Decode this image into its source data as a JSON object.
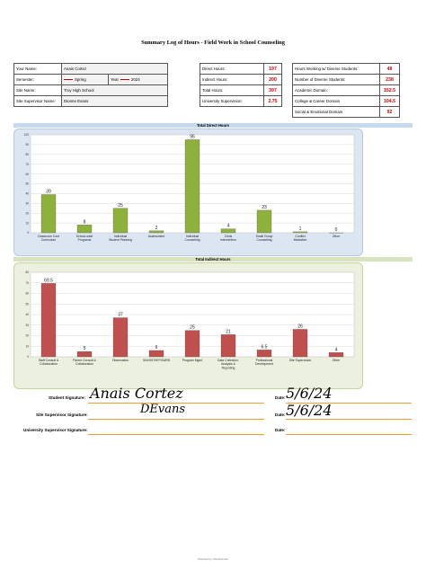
{
  "title": "Summary Log of Hours - Field Work in School Counseling",
  "info_left": {
    "your_name_label": "Your Name:",
    "your_name": "Anais Cortez",
    "semester_label": "Semester:",
    "semester": "Spring",
    "year_label": "Year",
    "year": "2024",
    "site_name_label": "Site Name:",
    "site_name": "Troy High School",
    "supervisor_label": "Site Supervisor Name:",
    "supervisor": "Dionne Evans"
  },
  "info_mid": {
    "direct_label": "Direct Hours:",
    "direct": "197",
    "indirect_label": "Indirect Hours:",
    "indirect": "200",
    "total_label": "Total Hours:",
    "total": "397",
    "univ_label": "University Supervision:",
    "univ": "2.75"
  },
  "info_right": {
    "diverse_hours_label": "Hours Working w/ Diverse Students:",
    "diverse_hours": "48",
    "diverse_num_label": "Number of Diverse Students:",
    "diverse_num": "238",
    "academic_label": "Academic Domain:",
    "academic": "152.5",
    "college_label": "College & Career Domain",
    "college": "104.5",
    "social_label": "Social & Emotional Domain",
    "social": "92"
  },
  "chart_data": [
    {
      "type": "bar",
      "title": "Total Direct Hours",
      "categories": [
        "Classroom Core Curriculum",
        "School-wide Programs",
        "Individual Student Planning",
        "Assessment",
        "Individual Counseling",
        "Crisis Intervention",
        "Small Group Counseling",
        "Conflict Mediation",
        "Other"
      ],
      "values": [
        39,
        8,
        25,
        2,
        95,
        4,
        23,
        1,
        0
      ],
      "ylim": [
        0,
        100
      ],
      "yticks": [
        0,
        10,
        20,
        30,
        40,
        50,
        60,
        70,
        80,
        90,
        100
      ],
      "grid": true,
      "bar_color": "#8db13b",
      "bg_color": "#dce6f2"
    },
    {
      "type": "bar",
      "title": "Total Indirect Hours",
      "categories": [
        "Staff Consult & Collaboration",
        "Parent Consult & Collaboration",
        "Observation",
        "504/SST/IEP/SARB",
        "Program Mgmt",
        "Data Collection, Analysis & Reporting",
        "Professional Development",
        "Site Supervision",
        "Other"
      ],
      "values": [
        69.5,
        5,
        37,
        6,
        25,
        21,
        6.5,
        26,
        4
      ],
      "value_labels": [
        "69.5",
        "5",
        "37",
        "6",
        "25",
        "21",
        "6.5",
        "26",
        "4"
      ],
      "ylim": [
        0,
        80
      ],
      "yticks": [
        0,
        10,
        20,
        30,
        40,
        50,
        60,
        70,
        80
      ],
      "grid": true,
      "bar_color": "#c0504d",
      "bg_color": "#ebf1de"
    }
  ],
  "signatures": {
    "student_label": "Student Signature:",
    "student_sig": "Anais Cortez",
    "site_label": "Site Supervisor Signature:",
    "site_sig": "DEvans",
    "univ_label": "University Supervisor Signature:",
    "date_label": "Date:",
    "date1": "5/6/24",
    "date2": "5/6/24"
  },
  "footer": "Scanned by CamScanner"
}
